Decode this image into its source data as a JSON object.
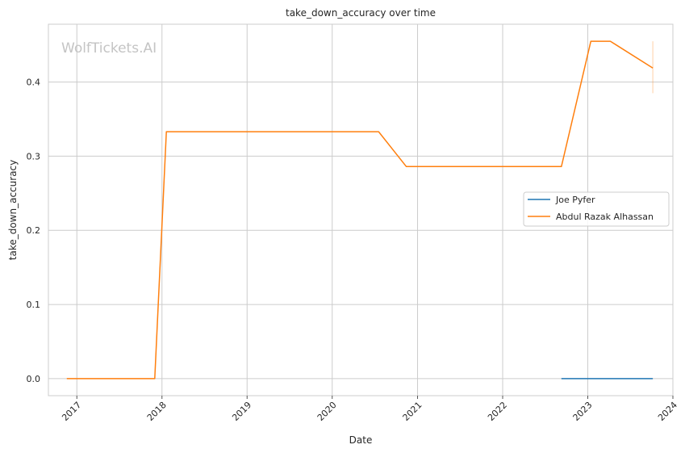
{
  "chart_data": {
    "type": "line",
    "title": "take_down_accuracy over time",
    "xlabel": "Date",
    "ylabel": "take_down_accuracy",
    "watermark": "WolfTickets.AI",
    "xlim": [
      "2016-09-01",
      "2024-01-01"
    ],
    "ylim": [
      -0.023,
      0.478
    ],
    "x_ticks": [
      "2017-01-01",
      "2018-01-01",
      "2019-01-01",
      "2020-01-01",
      "2021-01-01",
      "2022-01-01",
      "2023-01-01",
      "2024-01-01"
    ],
    "x_tick_labels": [
      "2017",
      "2018",
      "2019",
      "2020",
      "2021",
      "2022",
      "2023",
      "2024"
    ],
    "y_ticks": [
      0.0,
      0.1,
      0.2,
      0.3,
      0.4
    ],
    "y_tick_labels": [
      "0.0",
      "0.1",
      "0.2",
      "0.3",
      "0.4"
    ],
    "grid": true,
    "legend_position": "center-right",
    "series": [
      {
        "name": "Joe Pyfer",
        "color": "#1f77b4",
        "points": [
          {
            "x": "2022-09-10",
            "y": 0.0
          },
          {
            "x": "2023-10-07",
            "y": 0.0
          }
        ]
      },
      {
        "name": "Abdul Razak Alhassan",
        "color": "#ff7f0e",
        "points": [
          {
            "x": "2016-11-19",
            "y": 0.0
          },
          {
            "x": "2017-12-01",
            "y": 0.0
          },
          {
            "x": "2018-01-20",
            "y": 0.333
          },
          {
            "x": "2020-07-18",
            "y": 0.333
          },
          {
            "x": "2020-11-14",
            "y": 0.286
          },
          {
            "x": "2022-09-10",
            "y": 0.286
          },
          {
            "x": "2023-01-14",
            "y": 0.455
          },
          {
            "x": "2023-04-08",
            "y": 0.455
          },
          {
            "x": "2023-10-07",
            "y": 0.419
          }
        ],
        "error_band": {
          "x": "2023-10-07",
          "low": 0.385,
          "high": 0.455
        }
      }
    ]
  }
}
